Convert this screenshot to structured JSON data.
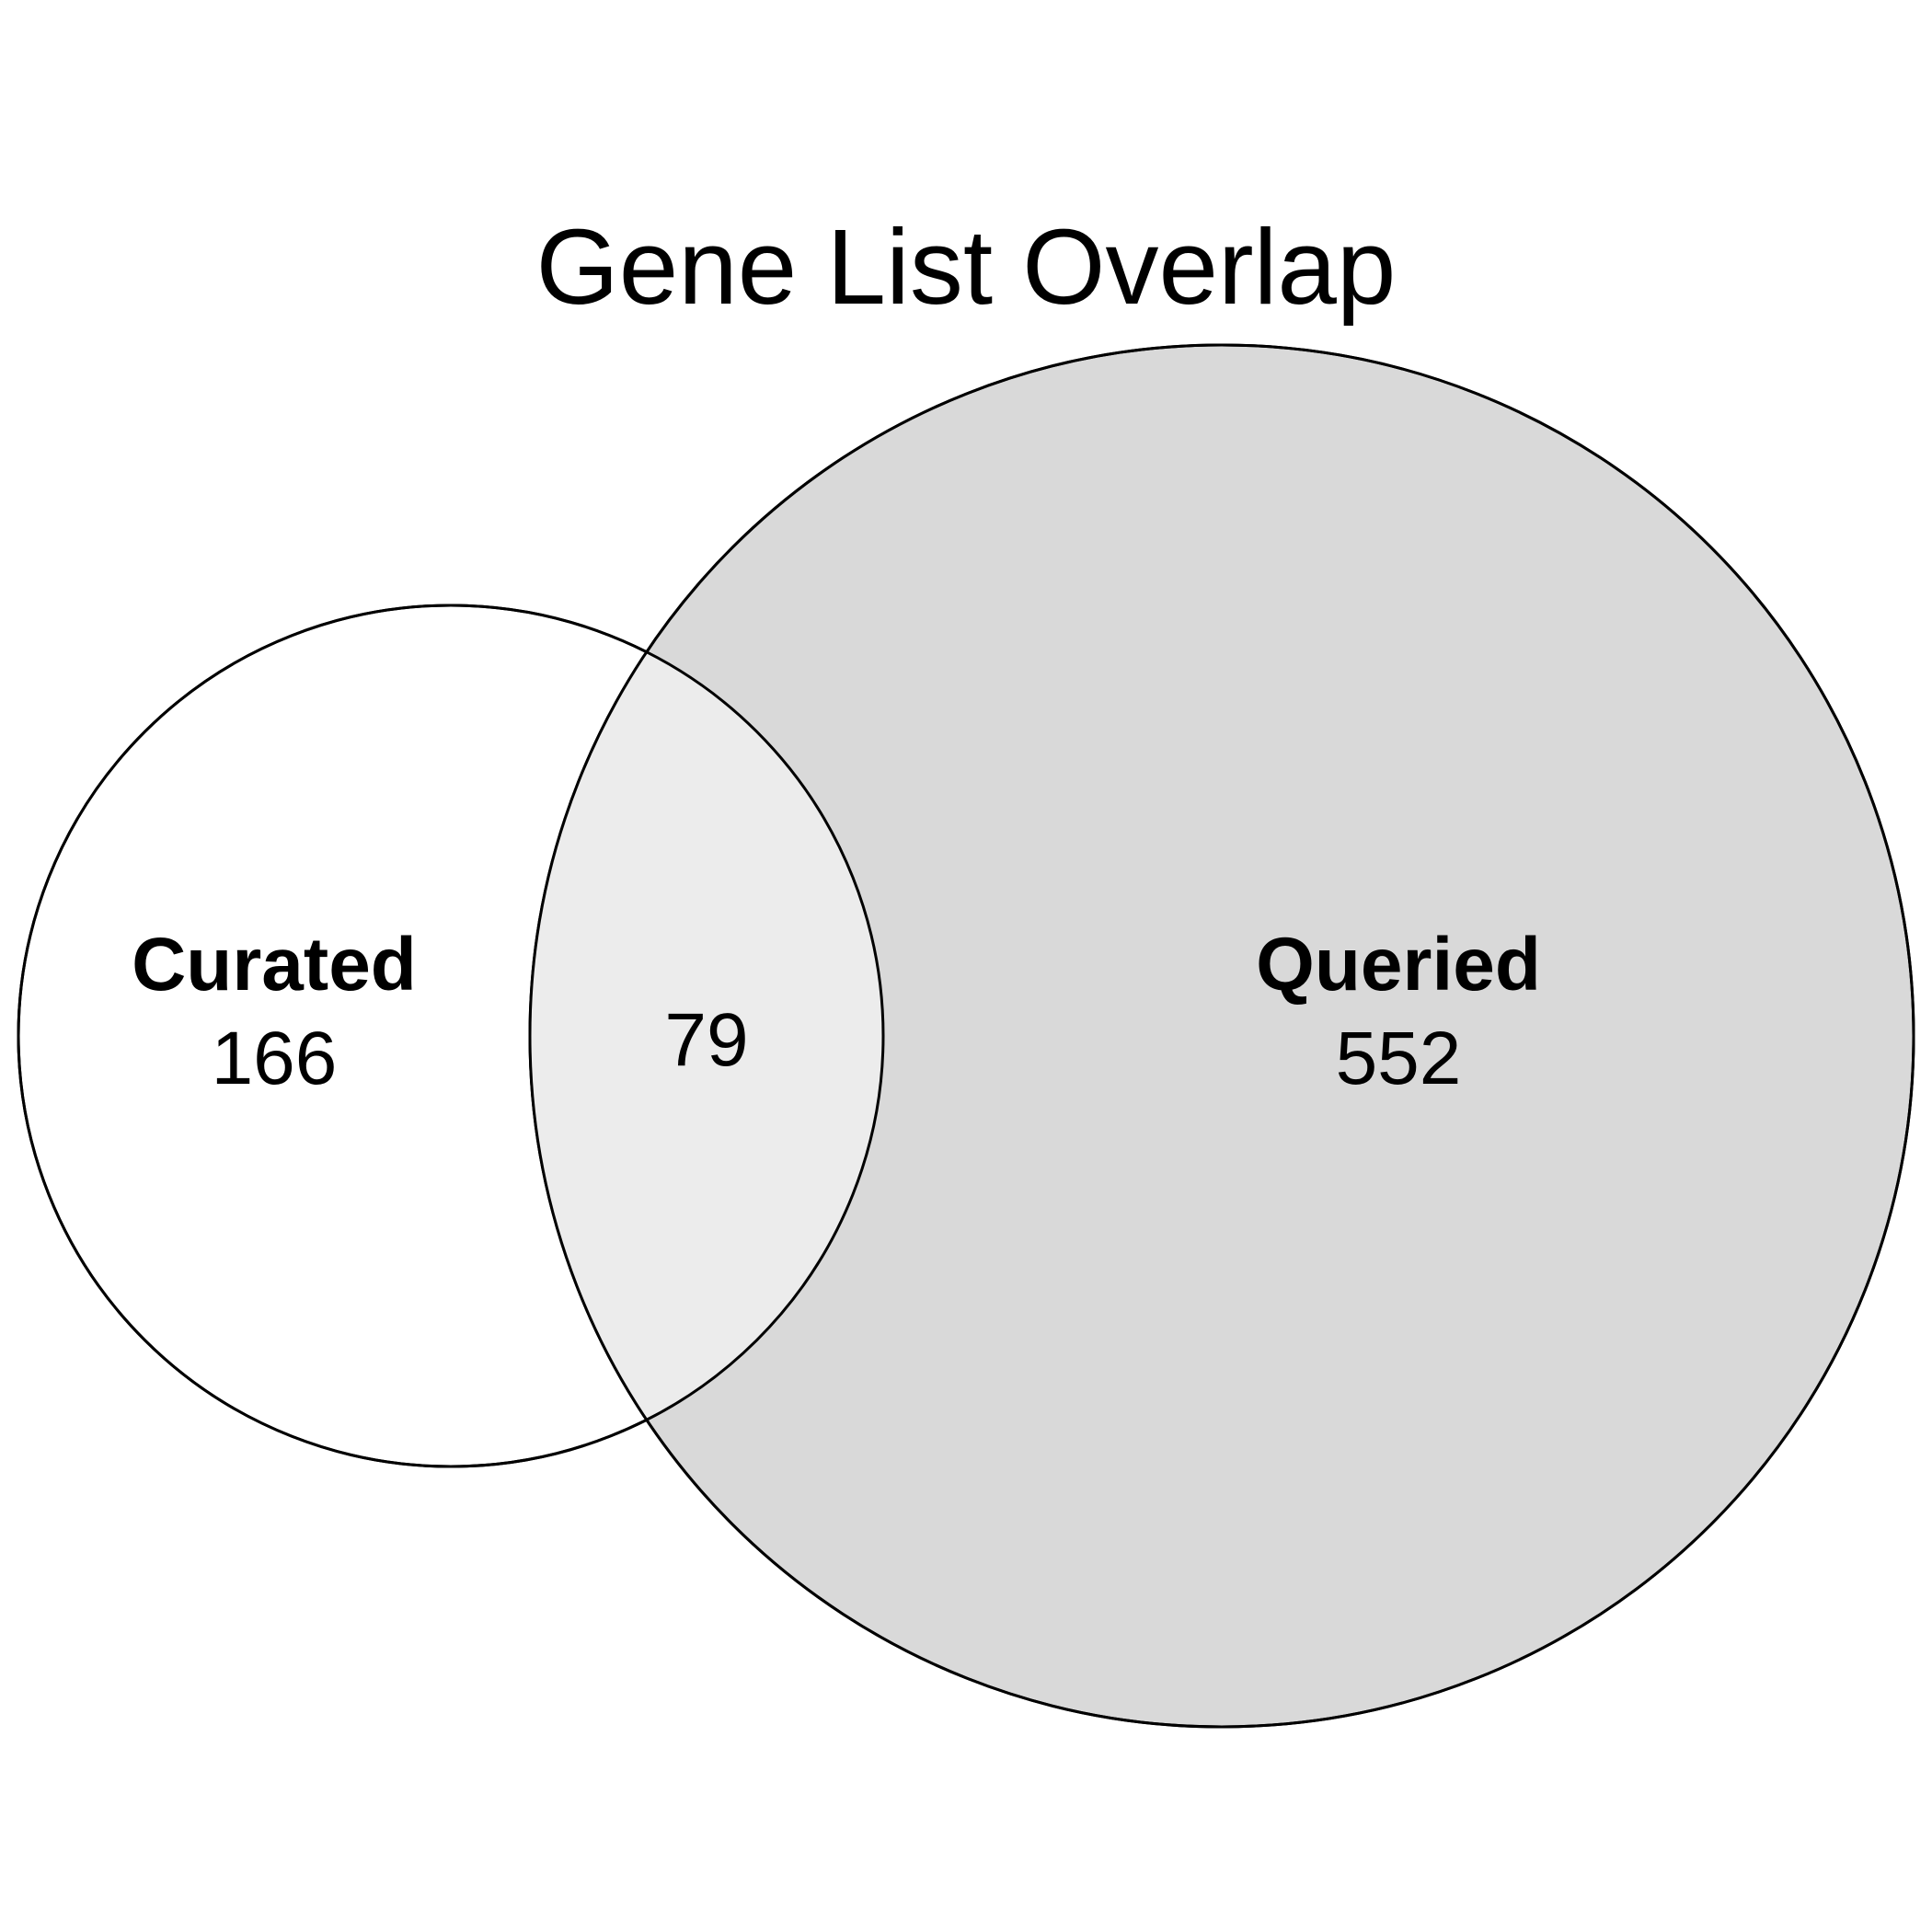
{
  "title": "Gene List Overlap",
  "sets": {
    "left": {
      "name": "Curated",
      "only_count": "166",
      "fill_color": "#ffffff"
    },
    "right": {
      "name": "Queried",
      "only_count": "552",
      "fill_color": "#d9d9d9"
    }
  },
  "intersection": {
    "count": "79",
    "fill_color": "#ececec"
  },
  "stroke_color": "#000000"
}
